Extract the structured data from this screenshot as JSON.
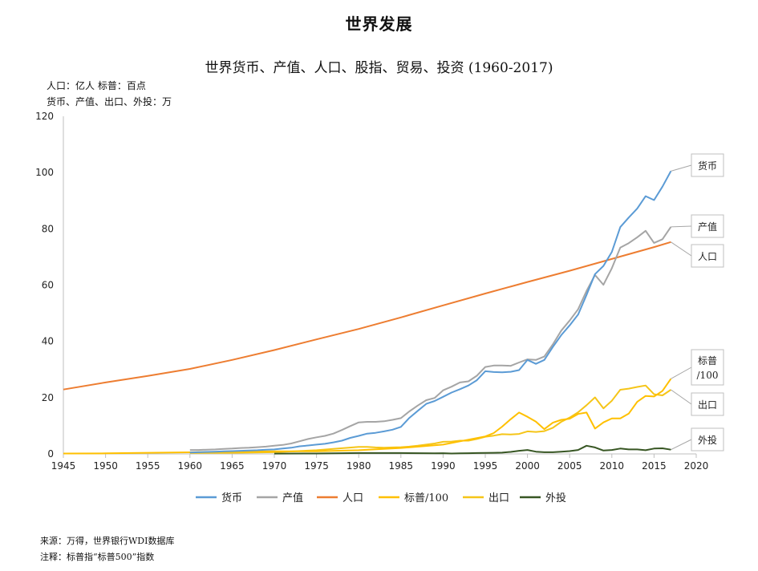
{
  "page": {
    "title": "世界发展",
    "unit_line1": "人口：亿人   标普：百点",
    "unit_line2": "货币、产值、出口、外投：万",
    "source": "来源：万得，世界银行WDI数据库",
    "note": "注释：标普指“标普500”指数"
  },
  "chart_data": {
    "type": "line",
    "title": "世界货币、产值、人口、股指、贸易、投资 (1960-2017)",
    "xlim": [
      1945,
      2020
    ],
    "ylim": [
      0,
      120
    ],
    "xticks": [
      1945,
      1950,
      1955,
      1960,
      1965,
      1970,
      1975,
      1980,
      1985,
      1990,
      1995,
      2000,
      2005,
      2010,
      2015,
      2020
    ],
    "yticks": [
      0,
      20,
      40,
      60,
      80,
      100,
      120
    ],
    "grid": false,
    "legend_position": "bottom",
    "series": [
      {
        "name": "货币",
        "label": "货币",
        "color": "#5b9bd5",
        "x": [
          1960,
          1961,
          1962,
          1963,
          1964,
          1965,
          1966,
          1967,
          1968,
          1969,
          1970,
          1971,
          1972,
          1973,
          1974,
          1975,
          1976,
          1977,
          1978,
          1979,
          1980,
          1981,
          1982,
          1983,
          1984,
          1985,
          1986,
          1987,
          1988,
          1989,
          1990,
          1991,
          1992,
          1993,
          1994,
          1995,
          1996,
          1997,
          1998,
          1999,
          2000,
          2001,
          2002,
          2003,
          2004,
          2005,
          2006,
          2007,
          2008,
          2009,
          2010,
          2011,
          2012,
          2013,
          2014,
          2015,
          2016,
          2017
        ],
        "values": [
          0.5,
          0.6,
          0.7,
          0.8,
          0.9,
          1.0,
          1.1,
          1.2,
          1.3,
          1.5,
          1.6,
          1.9,
          2.2,
          2.7,
          3.0,
          3.3,
          3.6,
          4.1,
          4.7,
          5.7,
          6.4,
          7.2,
          7.5,
          8.0,
          8.6,
          9.6,
          12.8,
          15.3,
          17.8,
          18.8,
          20.3,
          21.8,
          23.0,
          24.3,
          26.2,
          29.4,
          29.1,
          29.0,
          29.2,
          29.8,
          33.4,
          32.0,
          33.4,
          38.0,
          42.2,
          45.7,
          49.5,
          56.5,
          63.9,
          66.8,
          71.8,
          80.6,
          84.0,
          87.2,
          91.6,
          90.2,
          95.0,
          100.5
        ]
      },
      {
        "name": "产值",
        "label": "产值",
        "color": "#a5a5a5",
        "x": [
          1960,
          1961,
          1962,
          1963,
          1964,
          1965,
          1966,
          1967,
          1968,
          1969,
          1970,
          1971,
          1972,
          1973,
          1974,
          1975,
          1976,
          1977,
          1978,
          1979,
          1980,
          1981,
          1982,
          1983,
          1984,
          1985,
          1986,
          1987,
          1988,
          1989,
          1990,
          1991,
          1992,
          1993,
          1994,
          1995,
          1996,
          1997,
          1998,
          1999,
          2000,
          2001,
          2002,
          2003,
          2004,
          2005,
          2006,
          2007,
          2008,
          2009,
          2010,
          2011,
          2012,
          2013,
          2014,
          2015,
          2016,
          2017
        ],
        "values": [
          1.4,
          1.4,
          1.5,
          1.6,
          1.8,
          1.9,
          2.1,
          2.2,
          2.4,
          2.6,
          2.9,
          3.2,
          3.7,
          4.5,
          5.3,
          5.9,
          6.4,
          7.2,
          8.5,
          9.9,
          11.2,
          11.4,
          11.4,
          11.6,
          12.1,
          12.7,
          15.1,
          17.2,
          19.1,
          19.9,
          22.6,
          23.9,
          25.4,
          25.8,
          27.8,
          30.9,
          31.4,
          31.4,
          31.3,
          32.5,
          33.6,
          33.4,
          34.6,
          38.9,
          43.8,
          47.4,
          51.4,
          57.9,
          63.6,
          60.1,
          66.0,
          73.3,
          74.9,
          77.0,
          79.3,
          75.0,
          76.3,
          80.7
        ]
      },
      {
        "name": "人口",
        "label": "人口",
        "color": "#ed7d31",
        "x": [
          1945,
          1950,
          1955,
          1960,
          1965,
          1970,
          1975,
          1980,
          1985,
          1990,
          1995,
          2000,
          2005,
          2010,
          2015,
          2017
        ],
        "values": [
          22.9,
          25.4,
          27.7,
          30.2,
          33.4,
          36.9,
          40.7,
          44.4,
          48.5,
          52.8,
          57.0,
          61.1,
          65.1,
          69.3,
          73.5,
          75.3
        ]
      },
      {
        "name": "标普/100",
        "label": "标普/100",
        "color": "#ffc000",
        "x": [
          1945,
          1950,
          1955,
          1960,
          1965,
          1970,
          1975,
          1980,
          1985,
          1990,
          1995,
          1996,
          1997,
          1998,
          1999,
          2000,
          2001,
          2002,
          2003,
          2004,
          2005,
          2006,
          2007,
          2008,
          2009,
          2010,
          2011,
          2012,
          2013,
          2014,
          2015,
          2016,
          2017
        ],
        "values": [
          0.15,
          0.2,
          0.4,
          0.56,
          0.85,
          0.9,
          0.9,
          1.3,
          2.1,
          3.3,
          6.2,
          7.4,
          9.7,
          12.3,
          14.7,
          13.2,
          11.5,
          8.8,
          11.1,
          12.1,
          12.5,
          14.2,
          14.7,
          9.0,
          11.2,
          12.6,
          12.6,
          14.3,
          18.5,
          20.6,
          20.4,
          22.4,
          26.7
        ]
      },
      {
        "name": "出口",
        "label": "出口",
        "color": "#f5c518",
        "x": [
          1960,
          1965,
          1970,
          1975,
          1980,
          1981,
          1982,
          1983,
          1984,
          1985,
          1986,
          1987,
          1988,
          1989,
          1990,
          1991,
          1992,
          1993,
          1994,
          1995,
          1996,
          1997,
          1998,
          1999,
          2000,
          2001,
          2002,
          2003,
          2004,
          2005,
          2006,
          2007,
          2008,
          2009,
          2010,
          2011,
          2012,
          2013,
          2014,
          2015,
          2016,
          2017
        ],
        "values": [
          0.3,
          0.4,
          0.6,
          1.3,
          2.5,
          2.5,
          2.3,
          2.2,
          2.3,
          2.4,
          2.6,
          2.9,
          3.3,
          3.7,
          4.3,
          4.4,
          4.7,
          4.7,
          5.3,
          6.1,
          6.5,
          7.0,
          6.9,
          7.1,
          8.0,
          7.8,
          8.1,
          9.3,
          11.4,
          12.9,
          14.8,
          17.3,
          20.1,
          16.2,
          18.9,
          22.8,
          23.2,
          23.8,
          24.3,
          21.2,
          20.8,
          22.8
        ]
      },
      {
        "name": "外投",
        "label": "外投",
        "color": "#375623",
        "x": [
          1970,
          1975,
          1980,
          1985,
          1989,
          1990,
          1991,
          1992,
          1993,
          1994,
          1995,
          1996,
          1997,
          1998,
          1999,
          2000,
          2001,
          2002,
          2003,
          2004,
          2005,
          2006,
          2007,
          2008,
          2009,
          2010,
          2011,
          2012,
          2013,
          2014,
          2015,
          2016,
          2017
        ],
        "values": [
          0.1,
          0.15,
          0.3,
          0.3,
          0.2,
          0.25,
          0.15,
          0.2,
          0.25,
          0.3,
          0.35,
          0.4,
          0.45,
          0.7,
          1.1,
          1.4,
          0.8,
          0.6,
          0.6,
          0.8,
          1.0,
          1.4,
          2.9,
          2.3,
          1.2,
          1.4,
          1.9,
          1.6,
          1.6,
          1.3,
          1.9,
          2.0,
          1.5
        ]
      }
    ]
  }
}
